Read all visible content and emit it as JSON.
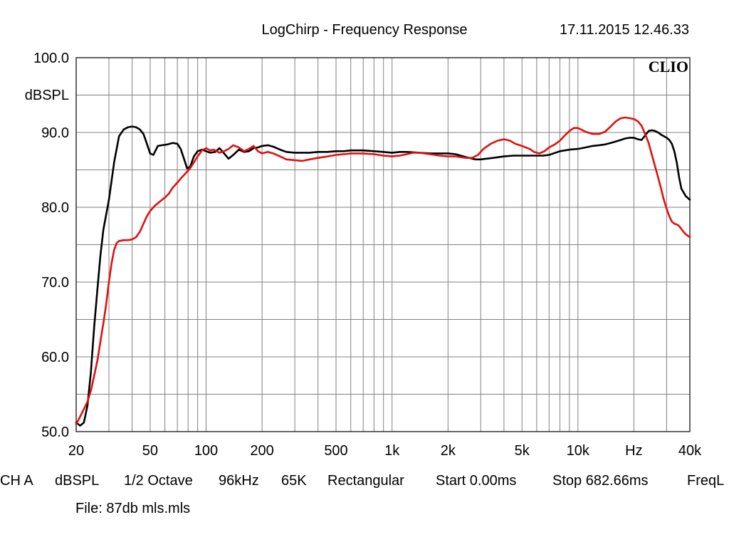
{
  "header": {
    "title": "LogChirp - Frequency Response",
    "timestamp": "17.11.2015 12.46.33"
  },
  "brand": "CLIO",
  "footer": {
    "settings": [
      "CH A",
      "dBSPL",
      "1/2 Octave",
      "96kHz",
      "65K",
      "Rectangular",
      "Start 0.00ms",
      "Stop 682.66ms",
      "FreqL"
    ],
    "file": "File: 87db mls.mls"
  },
  "colors": {
    "series_black": "#000000",
    "series_red": "#e01010",
    "grid": "#808080",
    "background": "#ffffff"
  },
  "chart_data": {
    "type": "line",
    "title": "LogChirp - Frequency Response",
    "ylabel": "dBSPL",
    "xscale": "log",
    "xlim": [
      20,
      40000
    ],
    "ylim": [
      50,
      100
    ],
    "grid": true,
    "x_ticks": [
      {
        "value": 20,
        "label": "20"
      },
      {
        "value": 50,
        "label": "50"
      },
      {
        "value": 100,
        "label": "100"
      },
      {
        "value": 200,
        "label": "200"
      },
      {
        "value": 500,
        "label": "500"
      },
      {
        "value": 1000,
        "label": "1k"
      },
      {
        "value": 2000,
        "label": "2k"
      },
      {
        "value": 5000,
        "label": "5k"
      },
      {
        "value": 10000,
        "label": "10k"
      },
      {
        "value": 20000,
        "label": "Hz"
      },
      {
        "value": 40000,
        "label": "40k"
      }
    ],
    "y_ticks": [
      {
        "value": 100,
        "label": "100.0"
      },
      {
        "value": 90,
        "label": "90.0"
      },
      {
        "value": 80,
        "label": "80.0"
      },
      {
        "value": 70,
        "label": "70.0"
      },
      {
        "value": 60,
        "label": "60.0"
      },
      {
        "value": 50,
        "label": "50.0"
      }
    ],
    "series": [
      {
        "color": "#000000",
        "points": [
          [
            20,
            51.2
          ],
          [
            21,
            50.8
          ],
          [
            22,
            51.2
          ],
          [
            23,
            53.5
          ],
          [
            24,
            58
          ],
          [
            25,
            64
          ],
          [
            26,
            69
          ],
          [
            27,
            73.5
          ],
          [
            28,
            77
          ],
          [
            30,
            81
          ],
          [
            32,
            86
          ],
          [
            34,
            89.5
          ],
          [
            36,
            90.4
          ],
          [
            38,
            90.7
          ],
          [
            40,
            90.8
          ],
          [
            42,
            90.7
          ],
          [
            44,
            90.4
          ],
          [
            46,
            89.8
          ],
          [
            48,
            88.5
          ],
          [
            50,
            87.2
          ],
          [
            52,
            87
          ],
          [
            55,
            88.2
          ],
          [
            58,
            88.3
          ],
          [
            62,
            88.4
          ],
          [
            66,
            88.6
          ],
          [
            70,
            88.5
          ],
          [
            73,
            87.8
          ],
          [
            76,
            86.5
          ],
          [
            79,
            85.2
          ],
          [
            82,
            85.4
          ],
          [
            86,
            86.8
          ],
          [
            90,
            87.5
          ],
          [
            95,
            87.7
          ],
          [
            100,
            87.5
          ],
          [
            105,
            87.3
          ],
          [
            112,
            87.4
          ],
          [
            118,
            87.9
          ],
          [
            125,
            87.2
          ],
          [
            132,
            86.5
          ],
          [
            140,
            87
          ],
          [
            150,
            87.7
          ],
          [
            160,
            87.4
          ],
          [
            170,
            87.5
          ],
          [
            180,
            87.9
          ],
          [
            190,
            88
          ],
          [
            200,
            88.2
          ],
          [
            215,
            88.3
          ],
          [
            230,
            88.1
          ],
          [
            250,
            87.7
          ],
          [
            270,
            87.4
          ],
          [
            300,
            87.3
          ],
          [
            330,
            87.3
          ],
          [
            360,
            87.3
          ],
          [
            400,
            87.4
          ],
          [
            450,
            87.4
          ],
          [
            500,
            87.5
          ],
          [
            550,
            87.5
          ],
          [
            600,
            87.6
          ],
          [
            650,
            87.6
          ],
          [
            700,
            87.6
          ],
          [
            800,
            87.5
          ],
          [
            900,
            87.4
          ],
          [
            1000,
            87.3
          ],
          [
            1100,
            87.4
          ],
          [
            1200,
            87.4
          ],
          [
            1400,
            87.3
          ],
          [
            1600,
            87.2
          ],
          [
            1800,
            87.2
          ],
          [
            2000,
            87.2
          ],
          [
            2200,
            87.1
          ],
          [
            2500,
            86.7
          ],
          [
            2800,
            86.4
          ],
          [
            3000,
            86.4
          ],
          [
            3500,
            86.6
          ],
          [
            4000,
            86.8
          ],
          [
            4500,
            86.9
          ],
          [
            5000,
            86.9
          ],
          [
            5500,
            86.9
          ],
          [
            6000,
            86.9
          ],
          [
            6500,
            86.9
          ],
          [
            7000,
            87
          ],
          [
            8000,
            87.5
          ],
          [
            9000,
            87.7
          ],
          [
            10000,
            87.8
          ],
          [
            11000,
            88
          ],
          [
            12000,
            88.2
          ],
          [
            13000,
            88.3
          ],
          [
            14000,
            88.4
          ],
          [
            15000,
            88.6
          ],
          [
            16000,
            88.8
          ],
          [
            17000,
            89
          ],
          [
            18000,
            89.2
          ],
          [
            19000,
            89.3
          ],
          [
            20000,
            89.3
          ],
          [
            21000,
            89.1
          ],
          [
            22000,
            89
          ],
          [
            23000,
            89.6
          ],
          [
            24000,
            90.2
          ],
          [
            25000,
            90.3
          ],
          [
            26000,
            90.2
          ],
          [
            27000,
            90
          ],
          [
            28000,
            89.7
          ],
          [
            29000,
            89.5
          ],
          [
            30000,
            89.3
          ],
          [
            31000,
            89
          ],
          [
            32000,
            88.5
          ],
          [
            33000,
            87.5
          ],
          [
            34000,
            86
          ],
          [
            35000,
            84
          ],
          [
            36000,
            82.5
          ],
          [
            38000,
            81.5
          ],
          [
            40000,
            81
          ]
        ]
      },
      {
        "color": "#e01010",
        "points": [
          [
            20,
            51
          ],
          [
            21,
            52
          ],
          [
            22,
            53
          ],
          [
            23,
            54
          ],
          [
            24,
            55.5
          ],
          [
            25,
            57.5
          ],
          [
            26,
            59.5
          ],
          [
            27,
            62
          ],
          [
            28,
            64.5
          ],
          [
            29,
            67
          ],
          [
            30,
            70
          ],
          [
            31,
            72.5
          ],
          [
            32,
            74.3
          ],
          [
            33,
            75.2
          ],
          [
            34,
            75.5
          ],
          [
            36,
            75.6
          ],
          [
            38,
            75.6
          ],
          [
            40,
            75.7
          ],
          [
            42,
            76
          ],
          [
            44,
            76.7
          ],
          [
            46,
            77.8
          ],
          [
            48,
            78.8
          ],
          [
            50,
            79.5
          ],
          [
            53,
            80.2
          ],
          [
            56,
            80.7
          ],
          [
            60,
            81.3
          ],
          [
            63,
            81.8
          ],
          [
            66,
            82.6
          ],
          [
            70,
            83.3
          ],
          [
            74,
            84
          ],
          [
            78,
            84.6
          ],
          [
            82,
            85.2
          ],
          [
            86,
            86
          ],
          [
            90,
            86.8
          ],
          [
            95,
            87.6
          ],
          [
            100,
            87.9
          ],
          [
            105,
            87.6
          ],
          [
            110,
            87.7
          ],
          [
            118,
            87.3
          ],
          [
            125,
            87.5
          ],
          [
            132,
            87.8
          ],
          [
            140,
            88.3
          ],
          [
            150,
            88
          ],
          [
            160,
            87.5
          ],
          [
            170,
            87.8
          ],
          [
            180,
            88.2
          ],
          [
            190,
            87.5
          ],
          [
            200,
            87.2
          ],
          [
            215,
            87.4
          ],
          [
            230,
            87.2
          ],
          [
            250,
            86.8
          ],
          [
            270,
            86.4
          ],
          [
            300,
            86.3
          ],
          [
            330,
            86.2
          ],
          [
            360,
            86.4
          ],
          [
            400,
            86.6
          ],
          [
            450,
            86.8
          ],
          [
            500,
            87
          ],
          [
            550,
            87.1
          ],
          [
            600,
            87.2
          ],
          [
            650,
            87.2
          ],
          [
            700,
            87.2
          ],
          [
            800,
            87.1
          ],
          [
            900,
            86.9
          ],
          [
            1000,
            86.8
          ],
          [
            1100,
            86.9
          ],
          [
            1200,
            87.1
          ],
          [
            1300,
            87.3
          ],
          [
            1400,
            87.3
          ],
          [
            1600,
            87.1
          ],
          [
            1800,
            86.9
          ],
          [
            2000,
            86.8
          ],
          [
            2200,
            86.8
          ],
          [
            2500,
            86.6
          ],
          [
            2700,
            86.6
          ],
          [
            2900,
            87
          ],
          [
            3100,
            87.8
          ],
          [
            3400,
            88.5
          ],
          [
            3700,
            88.9
          ],
          [
            4000,
            89.1
          ],
          [
            4300,
            88.9
          ],
          [
            4600,
            88.5
          ],
          [
            5000,
            88.2
          ],
          [
            5500,
            87.8
          ],
          [
            5800,
            87.4
          ],
          [
            6200,
            87.2
          ],
          [
            6600,
            87.5
          ],
          [
            7000,
            88
          ],
          [
            7500,
            88.4
          ],
          [
            8000,
            88.9
          ],
          [
            8500,
            89.6
          ],
          [
            9000,
            90.2
          ],
          [
            9500,
            90.6
          ],
          [
            10000,
            90.6
          ],
          [
            11000,
            90.1
          ],
          [
            12000,
            89.8
          ],
          [
            13000,
            89.8
          ],
          [
            14000,
            90.1
          ],
          [
            15000,
            90.8
          ],
          [
            16000,
            91.5
          ],
          [
            17000,
            91.9
          ],
          [
            18000,
            92
          ],
          [
            19000,
            91.9
          ],
          [
            20000,
            91.8
          ],
          [
            21000,
            91.5
          ],
          [
            22000,
            90.9
          ],
          [
            23000,
            89.8
          ],
          [
            24000,
            88.6
          ],
          [
            25000,
            87
          ],
          [
            26000,
            85.5
          ],
          [
            27000,
            84
          ],
          [
            28000,
            82.5
          ],
          [
            29000,
            81
          ],
          [
            30000,
            79.8
          ],
          [
            31000,
            78.8
          ],
          [
            32000,
            78.1
          ],
          [
            33000,
            77.8
          ],
          [
            34000,
            77.7
          ],
          [
            35000,
            77.5
          ],
          [
            36000,
            77.1
          ],
          [
            37000,
            76.7
          ],
          [
            38000,
            76.4
          ],
          [
            39000,
            76.2
          ],
          [
            40000,
            76
          ]
        ]
      }
    ]
  }
}
